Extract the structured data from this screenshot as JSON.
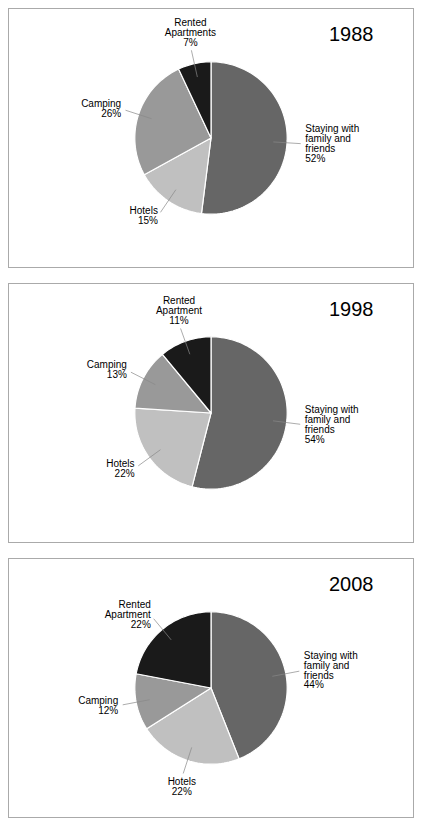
{
  "chart_data": [
    {
      "type": "pie",
      "title": "1988",
      "categories": [
        "Staying with\nfamily and\nfriends\n52%",
        "Hotels\n15%",
        "Camping\n26%",
        "Rented\nApartments\n7%"
      ],
      "values": [
        52,
        15,
        26,
        7
      ],
      "colors": [
        "#666666",
        "#c0c0c0",
        "#999999",
        "#1a1a1a"
      ]
    },
    {
      "type": "pie",
      "title": "1998",
      "categories": [
        "Staying with\nfamily and\nfriends\n54%",
        "Hotels\n22%",
        "Camping\n13%",
        "Rented\nApartment\n11%"
      ],
      "values": [
        54,
        22,
        13,
        11
      ],
      "colors": [
        "#666666",
        "#c0c0c0",
        "#999999",
        "#1a1a1a"
      ]
    },
    {
      "type": "pie",
      "title": "2008",
      "categories": [
        "Staying with\nfamily and\nfriends\n44%",
        "Hotels\n22%",
        "Camping\n12%",
        "Rented\nApartment\n22%"
      ],
      "values": [
        44,
        22,
        12,
        22
      ],
      "colors": [
        "#666666",
        "#c0c0c0",
        "#999999",
        "#1a1a1a"
      ]
    }
  ]
}
